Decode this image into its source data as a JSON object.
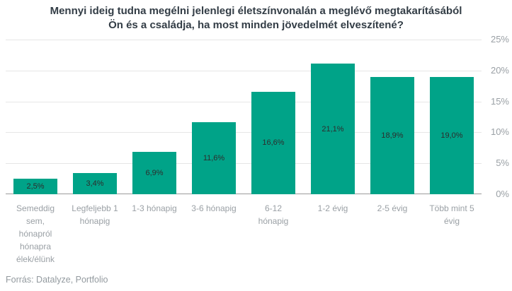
{
  "title": {
    "line1": "Mennyi ideig tudna megélni jelenlegi életszínvonalán a meglévő megtakarításából",
    "line2": "Ön és a családja, ha most minden jövedelmét elveszítené?"
  },
  "source": "Forrás: Datalyze, Portfolio",
  "colors": {
    "bar": "#00a388",
    "title": "#333d46",
    "axis_label": "#9aa0a5",
    "gridline": "#e6e6e6",
    "baseline": "#9b9b9b",
    "value_label": "#2d2d2d",
    "source_text": "#939a9f"
  },
  "chart_data": {
    "type": "bar",
    "title": "Mennyi ideig tudna megélni jelenlegi életszínvonalán a meglévő megtakarításából Ön és a családja, ha most minden jövedelmét elveszítené?",
    "categories": [
      "Semeddig sem, hónapról hónapra élek/élünk",
      "Legfeljebb 1 hónapig",
      "1-3 hónapig",
      "3-6 hónapig",
      "6-12 hónapig",
      "1-2 évig",
      "2-5 évig",
      "Több mint 5 évig"
    ],
    "category_display_lines": [
      [
        "Semeddig",
        "sem,",
        "hónapról",
        "hónapra",
        "élek/élünk"
      ],
      [
        "Legfeljebb 1",
        "hónapig"
      ],
      [
        "1-3 hónapig"
      ],
      [
        "3-6 hónapig"
      ],
      [
        "6-12",
        "hónapig"
      ],
      [
        "1-2 évig"
      ],
      [
        "2-5 évig"
      ],
      [
        "Több mint 5",
        "évig"
      ]
    ],
    "values": [
      2.5,
      3.4,
      6.9,
      11.6,
      16.6,
      21.1,
      18.9,
      19.0
    ],
    "value_labels": [
      "2,5%",
      "3,4%",
      "6,9%",
      "11,6%",
      "16,6%",
      "21,1%",
      "18,9%",
      "19,0%"
    ],
    "xlabel": "",
    "ylabel": "",
    "ylim": [
      0,
      25
    ],
    "yticks": [
      {
        "value": 0,
        "label": "0%"
      },
      {
        "value": 5,
        "label": "5%"
      },
      {
        "value": 10,
        "label": "10%"
      },
      {
        "value": 15,
        "label": "15%"
      },
      {
        "value": 20,
        "label": "20%"
      },
      {
        "value": 25,
        "label": "25%"
      }
    ],
    "y_axis_position": "right",
    "grid": true,
    "legend": false,
    "source": "Forrás: Datalyze, Portfolio"
  }
}
